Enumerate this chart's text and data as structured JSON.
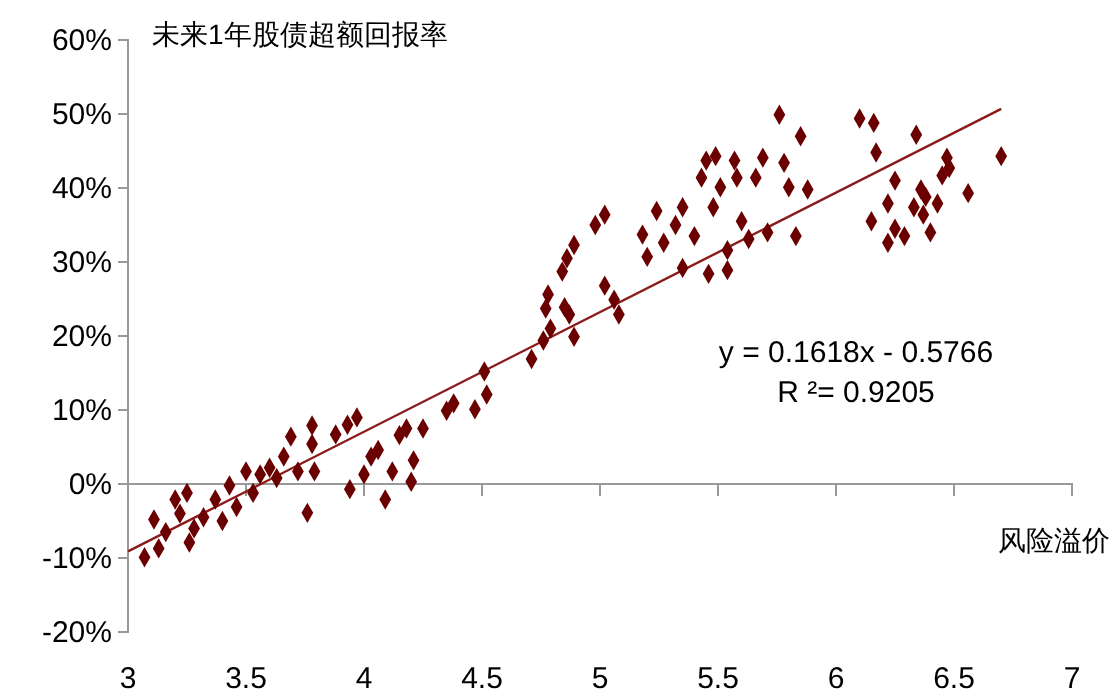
{
  "chart_data": {
    "type": "scatter",
    "ylabel": "未来1年股债超额回报率",
    "xlabel": "风险溢价",
    "annotations": [
      "y = 0.1618x - 0.5766",
      "R ²= 0.9205"
    ],
    "xlim": [
      3,
      7
    ],
    "xticks": [
      3,
      3.5,
      4,
      4.5,
      5,
      5.5,
      6,
      6.5,
      7
    ],
    "ylim": [
      -20,
      60
    ],
    "yticks": [
      {
        "value": -20,
        "label": "-20%"
      },
      {
        "value": -10,
        "label": "-10%"
      },
      {
        "value": 0,
        "label": "0%"
      },
      {
        "value": 10,
        "label": "10%"
      },
      {
        "value": 20,
        "label": "20%"
      },
      {
        "value": 30,
        "label": "30%"
      },
      {
        "value": 40,
        "label": "40%"
      },
      {
        "value": 50,
        "label": "50%"
      },
      {
        "value": 60,
        "label": "60%"
      }
    ],
    "grid": false,
    "marker": "diamond",
    "series": [
      {
        "color": "#6b0000",
        "x": [
          3.07,
          3.11,
          3.13,
          3.16,
          3.2,
          3.22,
          3.25,
          3.26,
          3.28,
          3.32,
          3.37,
          3.4,
          3.43,
          3.46,
          3.5,
          3.53,
          3.56,
          3.6,
          3.63,
          3.66,
          3.69,
          3.72,
          3.76,
          3.78,
          3.78,
          3.79,
          3.88,
          3.93,
          3.97,
          3.94,
          4.0,
          4.03,
          4.06,
          4.09,
          4.12,
          4.15,
          4.18,
          4.2,
          4.21,
          4.25,
          4.35,
          4.38,
          4.47,
          4.51,
          4.52,
          4.71,
          4.76,
          4.79,
          4.77,
          4.78,
          4.85,
          4.87,
          4.89,
          4.84,
          4.86,
          4.89,
          4.98,
          5.02,
          5.02,
          5.06,
          5.08,
          5.18,
          5.2,
          5.24,
          5.27,
          5.32,
          5.35,
          5.35,
          5.4,
          5.43,
          5.45,
          5.46,
          5.48,
          5.49,
          5.51,
          5.54,
          5.57,
          5.58,
          5.6,
          5.54,
          5.63,
          5.66,
          5.69,
          5.71,
          5.76,
          5.78,
          5.83,
          5.8,
          5.85,
          5.88,
          6.1,
          6.16,
          6.17,
          6.15,
          6.22,
          6.25,
          6.22,
          6.25,
          6.29,
          6.33,
          6.34,
          6.36,
          6.37,
          6.38,
          6.4,
          6.43,
          6.45,
          6.47,
          6.48,
          6.56,
          6.7
        ],
        "values": [
          -9.9,
          -4.8,
          -8.7,
          -6.5,
          -2.1,
          -4.0,
          -1.2,
          -7.9,
          -6.0,
          -4.5,
          -2.1,
          -5.0,
          -0.2,
          -3.1,
          1.7,
          -1.2,
          1.3,
          2.2,
          0.8,
          3.7,
          6.4,
          1.7,
          -3.9,
          7.9,
          5.4,
          1.7,
          6.7,
          8.0,
          9.0,
          -0.7,
          1.3,
          3.7,
          4.6,
          -2.1,
          1.7,
          6.6,
          7.5,
          0.3,
          3.2,
          7.5,
          9.9,
          10.9,
          10.1,
          15.2,
          12.1,
          16.9,
          19.4,
          21.0,
          23.7,
          25.6,
          23.9,
          22.9,
          19.9,
          28.7,
          30.5,
          32.3,
          35.0,
          36.4,
          26.8,
          24.9,
          22.9,
          33.7,
          30.7,
          36.9,
          32.6,
          35.0,
          37.4,
          29.2,
          33.5,
          41.4,
          43.7,
          28.4,
          37.4,
          44.3,
          40.1,
          31.6,
          43.7,
          41.4,
          35.5,
          28.9,
          33.1,
          41.4,
          44.1,
          34.0,
          49.9,
          43.4,
          33.5,
          40.1,
          47.0,
          39.8,
          49.4,
          48.8,
          44.8,
          35.5,
          37.9,
          41.0,
          32.6,
          34.5,
          33.5,
          37.4,
          47.2,
          39.8,
          36.4,
          38.8,
          34.0,
          37.9,
          41.7,
          44.1,
          42.7,
          39.3,
          44.3
        ]
      },
      {
        "type": "line",
        "color": "#8b1a1a",
        "marker": "none",
        "x": [
          3.0,
          6.7
        ],
        "values": [
          -9.1,
          50.7
        ]
      }
    ]
  }
}
